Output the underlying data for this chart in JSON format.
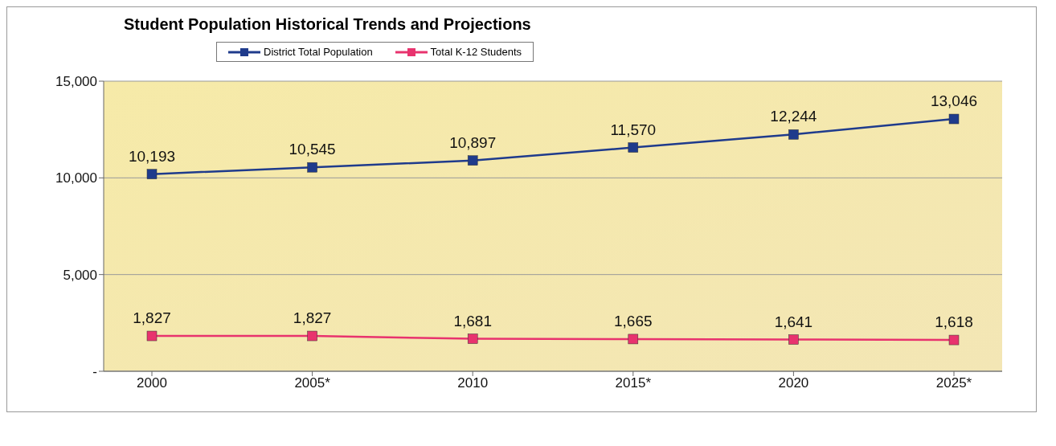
{
  "chart_data": {
    "type": "line",
    "title": "Student Population Historical Trends and Projections",
    "categories": [
      "2000",
      "2005*",
      "2010",
      "2015*",
      "2020",
      "2025*"
    ],
    "series": [
      {
        "name": "District Total Population",
        "color": "#1f3b8c",
        "values": [
          10193,
          10545,
          10897,
          11570,
          12244,
          13046
        ],
        "value_labels": [
          "10,193",
          "10,545",
          "10,897",
          "11,570",
          "12,244",
          "13,046"
        ]
      },
      {
        "name": "Total K-12 Students",
        "color": "#e8336e",
        "values": [
          1827,
          1827,
          1681,
          1665,
          1641,
          1618
        ],
        "value_labels": [
          "1,827",
          "1,827",
          "1,681",
          "1,665",
          "1,641",
          "1,618"
        ]
      }
    ],
    "ylim": [
      0,
      15000
    ],
    "yticks": [
      {
        "value": 0,
        "label": "-"
      },
      {
        "value": 5000,
        "label": "5,000"
      },
      {
        "value": 10000,
        "label": "10,000"
      },
      {
        "value": 15000,
        "label": "15,000"
      }
    ],
    "grid": "y",
    "legend": "top left",
    "marker": "square",
    "line_style": "solid"
  }
}
